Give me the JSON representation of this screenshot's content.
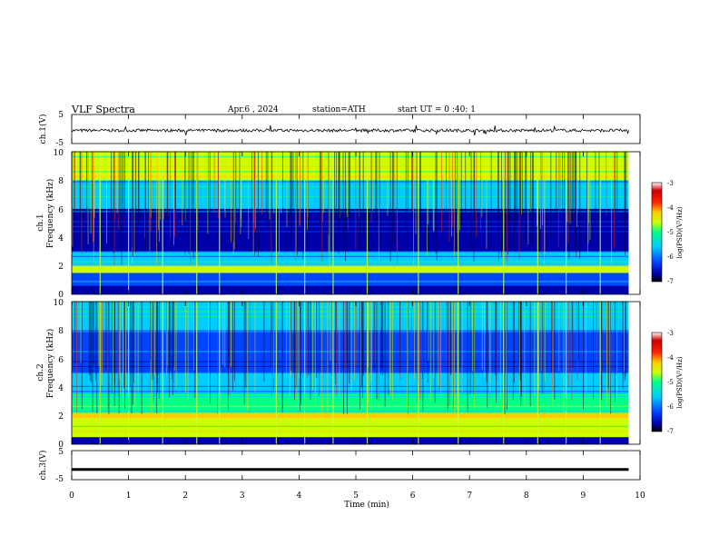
{
  "header": {
    "title": "VLF Spectra",
    "date": "Apr.6 , 2024",
    "station": "station=ATH",
    "start_time": "start UT = 0 :40: 1"
  },
  "colorbar": {
    "label": "log(PSD)(V²/Hz)",
    "ticks": [
      "-3",
      "-4",
      "-5",
      "-6",
      "-7"
    ],
    "range": [
      -7,
      -3
    ],
    "colors": [
      "#000000",
      "#0000aa",
      "#0044ff",
      "#00ccff",
      "#00ff88",
      "#ccff00",
      "#ffcc00",
      "#ff2200",
      "#cc0000",
      "#ffffff"
    ]
  },
  "chart_data": [
    {
      "type": "line",
      "ylabel": "ch.1(V)",
      "ylim": [
        -5,
        5
      ],
      "yticks": [
        "5",
        "-5"
      ],
      "xlim": [
        0,
        10
      ],
      "baseline": -0.5,
      "noise_amplitude": 0.5,
      "x_range_data": [
        0,
        9.8
      ]
    },
    {
      "type": "heatmap",
      "ylabel": "Frequency (kHz)",
      "channel_label": "ch.1",
      "ylim": [
        0,
        10
      ],
      "yticks": [
        "10",
        "8",
        "6",
        "4",
        "2",
        "0"
      ],
      "xlim": [
        0,
        10
      ],
      "x_range_data": [
        0,
        9.8
      ],
      "bands_khz": [
        {
          "freq_range": [
            8.0,
            10.0
          ],
          "level": -4.8
        },
        {
          "freq_range": [
            6.0,
            8.0
          ],
          "level": -5.8
        },
        {
          "freq_range": [
            3.0,
            6.0
          ],
          "level": -6.6
        },
        {
          "freq_range": [
            2.0,
            3.0
          ],
          "level": -5.6
        },
        {
          "freq_range": [
            1.5,
            2.0
          ],
          "level": -4.6
        },
        {
          "freq_range": [
            0.6,
            1.5
          ],
          "level": -6.5
        },
        {
          "freq_range": [
            0.0,
            0.6
          ],
          "level": -7.0
        }
      ],
      "spheric_times_min": [
        0.5,
        1.0,
        1.6,
        2.2,
        2.6,
        3.6,
        4.1,
        4.6,
        5.2,
        6.1,
        6.8,
        7.6,
        8.2,
        8.7,
        9.3
      ]
    },
    {
      "type": "heatmap",
      "ylabel": "Frequency (kHz)",
      "channel_label": "ch.2",
      "ylim": [
        0,
        10
      ],
      "yticks": [
        "10",
        "8",
        "6",
        "4",
        "2",
        "0"
      ],
      "xlim": [
        0,
        10
      ],
      "x_range_data": [
        0,
        9.8
      ],
      "bands_khz": [
        {
          "freq_range": [
            8.0,
            10.0
          ],
          "level": -5.6
        },
        {
          "freq_range": [
            5.0,
            8.0
          ],
          "level": -6.4
        },
        {
          "freq_range": [
            3.5,
            5.0
          ],
          "level": -5.8
        },
        {
          "freq_range": [
            2.2,
            3.5
          ],
          "level": -5.2
        },
        {
          "freq_range": [
            1.8,
            2.2
          ],
          "level": -4.3
        },
        {
          "freq_range": [
            0.5,
            1.8
          ],
          "level": -5.0
        },
        {
          "freq_range": [
            0.0,
            0.5
          ],
          "level": -6.8
        }
      ],
      "spheric_times_min": [
        0.5,
        1.0,
        1.6,
        2.2,
        2.6,
        3.6,
        4.1,
        4.6,
        5.2,
        6.1,
        6.8,
        7.6,
        8.2,
        8.7,
        9.3
      ]
    },
    {
      "type": "line",
      "ylabel": "ch.3(V)",
      "ylim": [
        -5,
        5
      ],
      "yticks": [
        "5",
        "-5"
      ],
      "xlim": [
        0,
        10
      ],
      "baseline": -1.5,
      "x_range_data": [
        0,
        9.8
      ],
      "xlabel": "Time (min)",
      "xticks": [
        "0",
        "1",
        "2",
        "3",
        "4",
        "5",
        "6",
        "7",
        "8",
        "9",
        "10"
      ]
    }
  ]
}
